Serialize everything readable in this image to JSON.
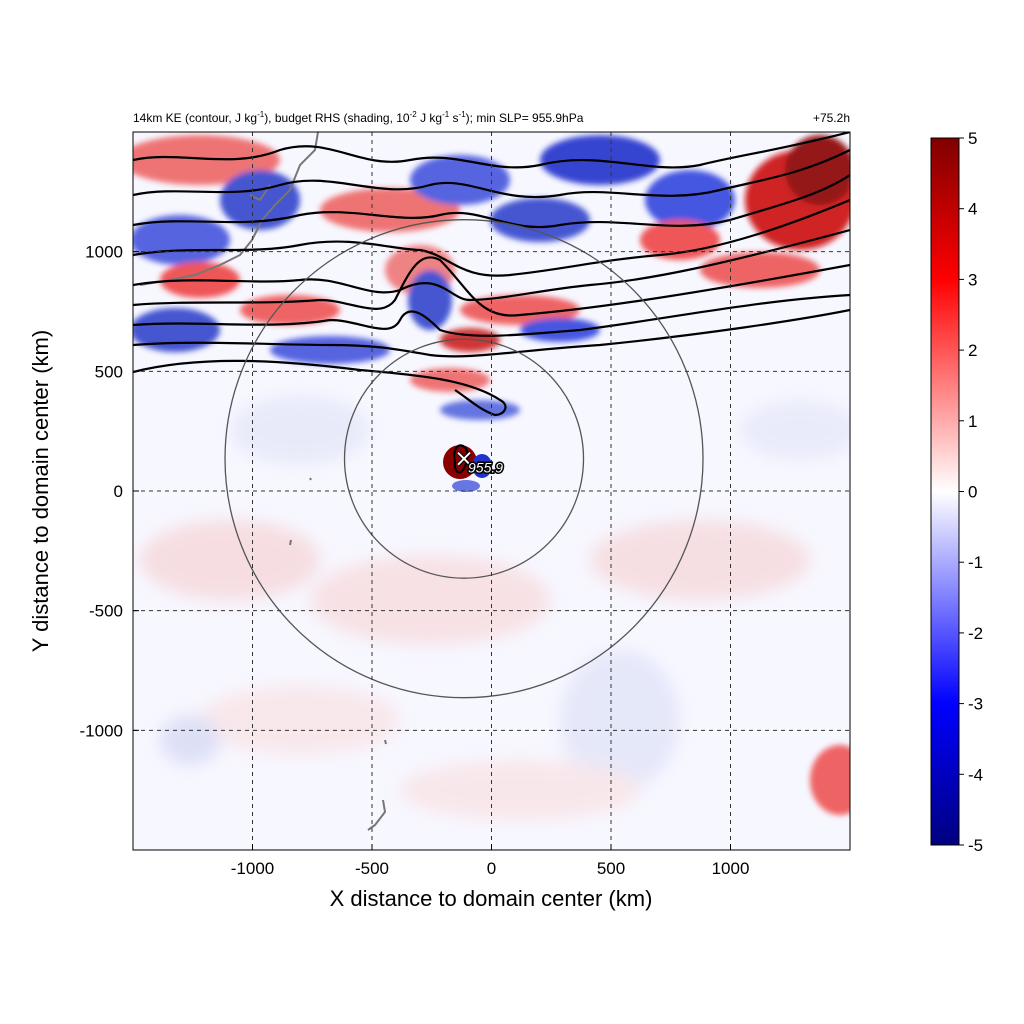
{
  "chart_data": {
    "type": "heatmap",
    "title": {
      "main_before_exp1": "14km KE (contour, J kg",
      "exp1": "-1",
      "mid1": "), budget RHS (shading, 10",
      "exp2": "-2",
      "mid2": " J kg",
      "exp3": "-1",
      "mid3": " s",
      "exp4": "-1",
      "end": "); min SLP= 955.9hPa"
    },
    "time_label": "+75.2h",
    "xlabel": "X distance to domain center (km)",
    "ylabel": "Y distance to domain center (km)",
    "xlim": [
      -1500,
      1500
    ],
    "ylim": [
      -1500,
      1500
    ],
    "x_ticks": [
      -1000,
      -500,
      0,
      500,
      1000
    ],
    "y_ticks": [
      1000,
      500,
      0,
      -500,
      -1000
    ],
    "x_tick_labels": [
      "-1000",
      "-500",
      "0",
      "500",
      "1000"
    ],
    "y_tick_labels": [
      "1000",
      "500",
      "0",
      "-500",
      "-1000"
    ],
    "grid": "dashed",
    "colorbar": {
      "ticks": [
        5,
        4,
        3,
        2,
        1,
        0,
        -1,
        -2,
        -3,
        -4,
        -5
      ],
      "labels": [
        "5",
        "4",
        "3",
        "2",
        "1",
        "0",
        "-1",
        "-2",
        "-3",
        "-4",
        "-5"
      ],
      "range": [
        -5,
        5
      ],
      "colors": [
        "#000080",
        "#0000ff",
        "#ffffff",
        "#ff0000",
        "#800000"
      ]
    },
    "storm_center": {
      "x": -115,
      "y": 135,
      "label": "955.9"
    },
    "range_rings_km": [
      500,
      1000
    ],
    "colors": {
      "positive": "#dd2222",
      "negative": "#2233dd",
      "contour": "#000000",
      "coast": "#777777",
      "ring": "#555555"
    }
  }
}
